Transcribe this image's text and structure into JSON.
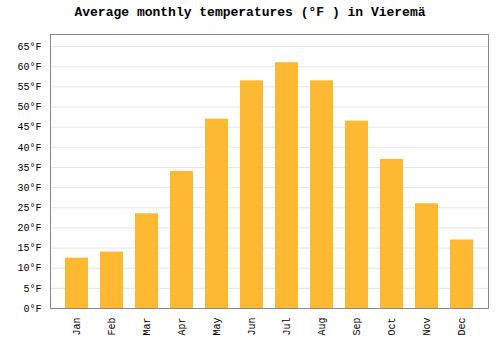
{
  "chart_data": {
    "type": "bar",
    "title": "Average monthly temperatures (°F ) in Vieremä",
    "categories": [
      "Jan",
      "Feb",
      "Mar",
      "Apr",
      "May",
      "Jun",
      "Jul",
      "Aug",
      "Sep",
      "Oct",
      "Nov",
      "Dec"
    ],
    "values": [
      12.5,
      14.0,
      23.5,
      34.0,
      47.0,
      56.5,
      61.0,
      56.5,
      46.5,
      37.0,
      26.0,
      17.0
    ],
    "color": "#FDB931",
    "ylim": [
      0,
      68
    ],
    "yticks": [
      {
        "value": 0,
        "label": "0°F"
      },
      {
        "value": 5,
        "label": "5°F"
      },
      {
        "value": 10,
        "label": "10°F"
      },
      {
        "value": 15,
        "label": "15°F"
      },
      {
        "value": 20,
        "label": "20°F"
      },
      {
        "value": 25,
        "label": "25°F"
      },
      {
        "value": 30,
        "label": "30°F"
      },
      {
        "value": 35,
        "label": "35°F"
      },
      {
        "value": 40,
        "label": "40°F"
      },
      {
        "value": 45,
        "label": "45°F"
      },
      {
        "value": 50,
        "label": "50°F"
      },
      {
        "value": 55,
        "label": "55°F"
      },
      {
        "value": 60,
        "label": "60°F"
      },
      {
        "value": 65,
        "label": "65°F"
      }
    ],
    "grid": true
  }
}
